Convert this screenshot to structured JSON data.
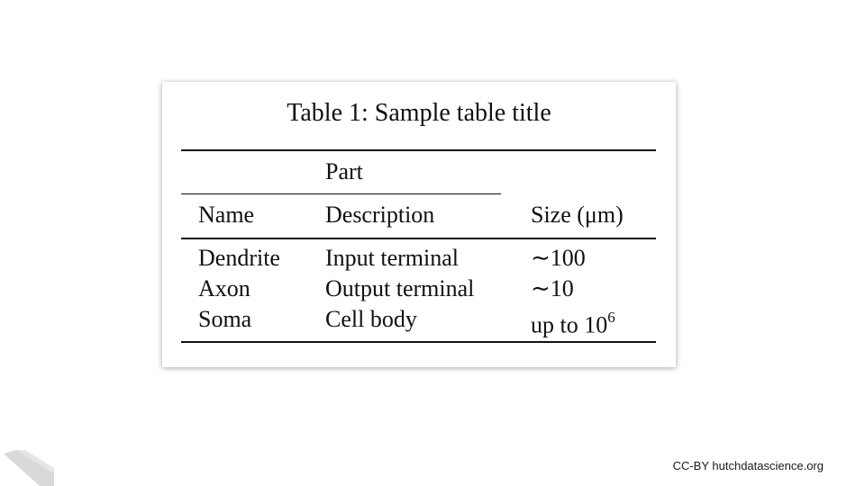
{
  "table": {
    "title": "Table 1: Sample table title",
    "group_header": "Part",
    "columns": [
      "Name",
      "Description",
      "Size (μm)"
    ],
    "rows": [
      {
        "name": "Dendrite",
        "description": "Input terminal",
        "size": "∼100"
      },
      {
        "name": "Axon",
        "description": "Output terminal",
        "size": "∼10"
      },
      {
        "name": "Soma",
        "description": "Cell body",
        "size_base": "up to 10",
        "size_exponent": "6"
      }
    ]
  },
  "footer": {
    "license": "CC-BY hutchdatascience.org"
  },
  "colors": {
    "text": "#111111",
    "logo": "#d9d9d9"
  },
  "icons": {
    "logo": "hutch-logo-icon"
  }
}
